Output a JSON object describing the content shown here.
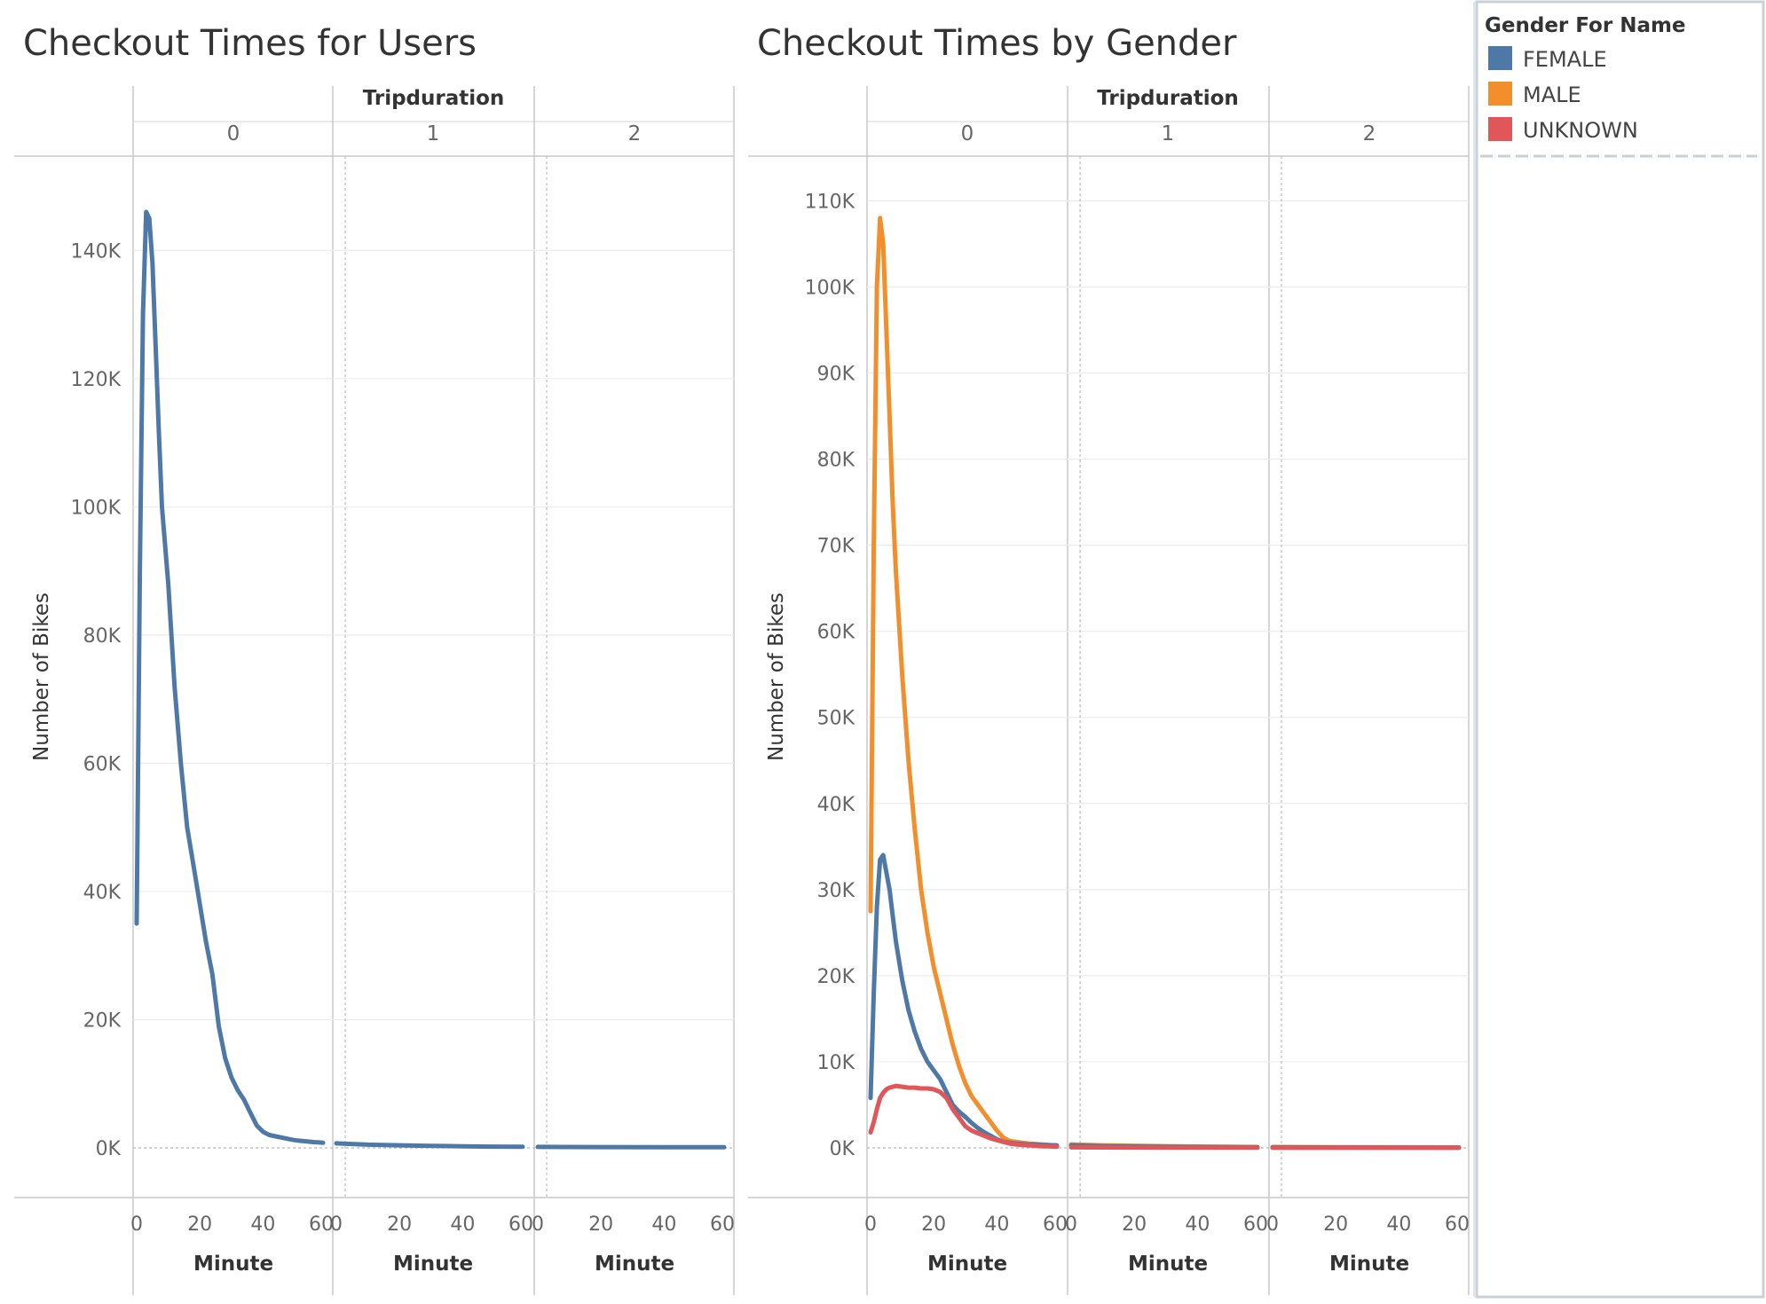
{
  "legend": {
    "title": "Gender For Name",
    "items": [
      {
        "label": "FEMALE",
        "color": "#4e79a7"
      },
      {
        "label": "MALE",
        "color": "#f28e2b"
      },
      {
        "label": "UNKNOWN",
        "color": "#e15759"
      }
    ]
  },
  "chart_data": [
    {
      "type": "line",
      "title": "Checkout Times for Users",
      "column_header": "Tripduration",
      "panels": [
        "0",
        "1",
        "2"
      ],
      "xlabel": "Minute",
      "ylabel": "Number of Bikes",
      "xlim": [
        0,
        59
      ],
      "xticks": [
        0,
        20,
        40,
        60
      ],
      "ylim": [
        0,
        150000
      ],
      "yticks": [
        0,
        20000,
        40000,
        60000,
        80000,
        100000,
        120000,
        140000
      ],
      "ytick_labels": [
        "0K",
        "20K",
        "40K",
        "60K",
        "80K",
        "100K",
        "120K",
        "140K"
      ],
      "grid": true,
      "series": [
        {
          "color": "#4e79a7",
          "panels": [
            {
              "panel": "0",
              "x": [
                0,
                1,
                2,
                3,
                4,
                5,
                6,
                7,
                8,
                10,
                12,
                14,
                16,
                18,
                20,
                22,
                24,
                26,
                28,
                30,
                32,
                34,
                36,
                38,
                40,
                42,
                44,
                46,
                48,
                50,
                52,
                54,
                56,
                58,
                59
              ],
              "y": [
                35000,
                90000,
                130000,
                146000,
                145000,
                138000,
                125000,
                112000,
                100000,
                88000,
                72000,
                60000,
                50000,
                44000,
                38000,
                32000,
                27000,
                19000,
                14000,
                11000,
                9000,
                7500,
                5500,
                3500,
                2500,
                2000,
                1800,
                1600,
                1400,
                1200,
                1100,
                1000,
                900,
                850,
                800
              ]
            },
            {
              "panel": "1",
              "x": [
                0,
                10,
                20,
                30,
                40,
                50,
                59
              ],
              "y": [
                700,
                500,
                400,
                300,
                250,
                200,
                180
              ]
            },
            {
              "panel": "2",
              "x": [
                0,
                20,
                40,
                59
              ],
              "y": [
                150,
                120,
                100,
                90
              ]
            }
          ]
        }
      ]
    },
    {
      "type": "line",
      "title": "Checkout Times by Gender",
      "column_header": "Tripduration",
      "panels": [
        "0",
        "1",
        "2"
      ],
      "xlabel": "Minute",
      "ylabel": "Number of Bikes",
      "xlim": [
        0,
        59
      ],
      "xticks": [
        0,
        20,
        40,
        60
      ],
      "ylim": [
        0,
        112000
      ],
      "yticks": [
        0,
        10000,
        20000,
        30000,
        40000,
        50000,
        60000,
        70000,
        80000,
        90000,
        100000,
        110000
      ],
      "ytick_labels": [
        "0K",
        "10K",
        "20K",
        "30K",
        "40K",
        "50K",
        "60K",
        "70K",
        "80K",
        "90K",
        "100K",
        "110K"
      ],
      "grid": true,
      "series": [
        {
          "name": "MALE",
          "color": "#f28e2b",
          "panels": [
            {
              "panel": "0",
              "x": [
                0,
                1,
                2,
                3,
                4,
                5,
                6,
                7,
                8,
                10,
                12,
                14,
                16,
                18,
                20,
                22,
                24,
                26,
                28,
                30,
                32,
                34,
                36,
                38,
                40,
                42,
                44,
                46,
                48,
                50,
                52,
                54,
                56,
                58,
                59
              ],
              "y": [
                27500,
                70000,
                100000,
                108000,
                105000,
                95000,
                85000,
                75000,
                67000,
                55000,
                45000,
                37000,
                30000,
                25000,
                21000,
                18000,
                15000,
                12000,
                9500,
                7500,
                6000,
                5000,
                4000,
                3000,
                2000,
                1200,
                800,
                700,
                600,
                500,
                450,
                400,
                350,
                300,
                280
              ]
            },
            {
              "panel": "1",
              "x": [
                0,
                10,
                20,
                30,
                40,
                50,
                59
              ],
              "y": [
                400,
                300,
                250,
                200,
                150,
                120,
                100
              ]
            },
            {
              "panel": "2",
              "x": [
                0,
                20,
                40,
                59
              ],
              "y": [
                100,
                80,
                60,
                50
              ]
            }
          ]
        },
        {
          "name": "FEMALE",
          "color": "#4e79a7",
          "panels": [
            {
              "panel": "0",
              "x": [
                0,
                1,
                2,
                3,
                4,
                5,
                6,
                7,
                8,
                10,
                12,
                14,
                16,
                18,
                20,
                22,
                24,
                26,
                28,
                30,
                32,
                34,
                36,
                38,
                40,
                42,
                44,
                46,
                48,
                50,
                52,
                54,
                56,
                58,
                59
              ],
              "y": [
                5800,
                18000,
                28000,
                33500,
                34000,
                32000,
                30000,
                27000,
                24000,
                19500,
                16000,
                13500,
                11500,
                10000,
                9000,
                8000,
                6500,
                5000,
                4200,
                3600,
                2900,
                2300,
                1800,
                1400,
                1000,
                700,
                600,
                500,
                450,
                400,
                380,
                350,
                320,
                300,
                280
              ]
            },
            {
              "panel": "1",
              "x": [
                0,
                10,
                20,
                30,
                40,
                50,
                59
              ],
              "y": [
                300,
                200,
                150,
                120,
                100,
                80,
                70
              ]
            },
            {
              "panel": "2",
              "x": [
                0,
                20,
                40,
                59
              ],
              "y": [
                60,
                50,
                40,
                30
              ]
            }
          ]
        },
        {
          "name": "UNKNOWN",
          "color": "#e15759",
          "panels": [
            {
              "panel": "0",
              "x": [
                0,
                1,
                2,
                3,
                4,
                5,
                6,
                7,
                8,
                10,
                12,
                14,
                16,
                18,
                20,
                22,
                24,
                26,
                28,
                30,
                32,
                34,
                36,
                38,
                40,
                42,
                44,
                46,
                48,
                50,
                52,
                54,
                56,
                58,
                59
              ],
              "y": [
                1800,
                3000,
                4500,
                5800,
                6400,
                6800,
                7000,
                7100,
                7200,
                7100,
                7000,
                7000,
                6900,
                6900,
                6800,
                6500,
                5800,
                4500,
                3500,
                2500,
                2000,
                1700,
                1400,
                1100,
                900,
                700,
                500,
                400,
                350,
                300,
                250,
                200,
                180,
                150,
                140
              ]
            },
            {
              "panel": "1",
              "x": [
                0,
                10,
                20,
                30,
                40,
                50,
                59
              ],
              "y": [
                60,
                50,
                40,
                30,
                25,
                20,
                20
              ]
            },
            {
              "panel": "2",
              "x": [
                0,
                20,
                40,
                59
              ],
              "y": [
                10,
                10,
                10,
                10
              ]
            }
          ]
        }
      ]
    }
  ]
}
